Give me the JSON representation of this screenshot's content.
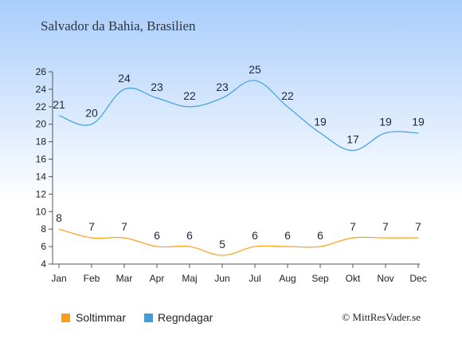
{
  "chart_data": {
    "type": "line",
    "title": "Salvador da Bahia, Brasilien",
    "categories": [
      "Jan",
      "Feb",
      "Mar",
      "Apr",
      "Maj",
      "Jun",
      "Jul",
      "Aug",
      "Sep",
      "Okt",
      "Nov",
      "Dec"
    ],
    "series": [
      {
        "name": "Soltimmar",
        "color": "#ff9e14",
        "values": [
          8,
          7,
          7,
          6,
          6,
          5,
          6,
          6,
          6,
          7,
          7,
          7
        ]
      },
      {
        "name": "Regndagar",
        "color": "#3f9ee0",
        "values": [
          21,
          20,
          24,
          23,
          22,
          23,
          25,
          22,
          19,
          17,
          19,
          19
        ]
      }
    ],
    "ylim": [
      4,
      26
    ],
    "yticks": [
      4,
      6,
      8,
      10,
      12,
      14,
      16,
      18,
      20,
      22,
      24,
      26
    ],
    "grid": false,
    "legend_position": "bottom-left",
    "credit": "© MittResVader.se"
  }
}
